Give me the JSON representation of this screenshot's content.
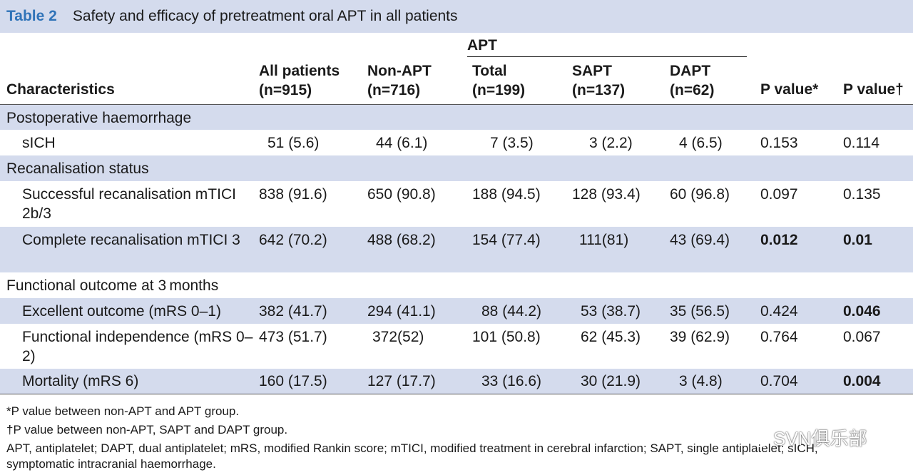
{
  "title": {
    "table_no": "Table 2",
    "caption": "Safety and efficacy of pretreatment oral APT in all patients"
  },
  "header": {
    "characteristics": "Characteristics",
    "all_patients": [
      "All patients",
      "(n=915)"
    ],
    "non_apt": [
      "Non-APT",
      "(n=716)"
    ],
    "apt_group": "APT",
    "total": [
      "Total",
      "(n=199)"
    ],
    "sapt": [
      "SAPT",
      "(n=137)"
    ],
    "dapt": [
      "DAPT",
      "(n=62)"
    ],
    "p1": "P value*",
    "p2": "P value†"
  },
  "sections": {
    "s1": "Postoperative haemorrhage",
    "s2": "Recanalisation status",
    "s3": "Functional outcome at 3 months"
  },
  "rows": [
    {
      "label": "sICH",
      "all": "51 (5.6)",
      "non_apt": "44 (6.1)",
      "total": "7 (3.5)",
      "sapt": "3 (2.2)",
      "dapt": "4 (6.5)",
      "p1": "0.153",
      "p2": "0.114"
    },
    {
      "label": "Successful recanalisation mTICI 2b/3",
      "all": "838 (91.6)",
      "non_apt": "650 (90.8)",
      "total": "188 (94.5)",
      "sapt": "128 (93.4)",
      "dapt": "60 (96.8)",
      "p1": "0.097",
      "p2": "0.135"
    },
    {
      "label": "Complete recanalisation mTICI 3",
      "all": "642 (70.2)",
      "non_apt": "488 (68.2)",
      "total": "154 (77.4)",
      "sapt": "111(81)",
      "dapt": "43 (69.4)",
      "p1": "0.012",
      "p2": "0.01"
    },
    {
      "label": "Excellent outcome (mRS 0–1)",
      "all": "382 (41.7)",
      "non_apt": "294 (41.1)",
      "total": "88 (44.2)",
      "sapt": "53 (38.7)",
      "dapt": "35 (56.5)",
      "p1": "0.424",
      "p2": "0.046"
    },
    {
      "label": "Functional independence (mRS 0–2)",
      "all": "473 (51.7)",
      "non_apt": "372(52)",
      "total": "101 (50.8)",
      "sapt": "62 (45.3)",
      "dapt": "39 (62.9)",
      "p1": "0.764",
      "p2": "0.067"
    },
    {
      "label": "Mortality (mRS 6)",
      "all": "160 (17.5)",
      "non_apt": "127 (17.7)",
      "total": "33 (16.6)",
      "sapt": "30 (21.9)",
      "dapt": "3 (4.8)",
      "p1": "0.704",
      "p2": "0.004"
    }
  ],
  "footnotes": [
    "*P value between non-APT and APT group.",
    "†P value between non-APT, SAPT and DAPT group.",
    "APT, antiplatelet; DAPT, dual antiplatelet; mRS, modified Rankin score; mTICI, modified treatment in cerebral infarction; SAPT, single antiplatelet; sICH, symptomatic intracranial haemorrhage."
  ],
  "watermark": {
    "icon": "wechat-icon",
    "text": "SVN俱乐部"
  },
  "colors": {
    "shade": "#d4dbed",
    "title_accent": "#2f73b8"
  }
}
